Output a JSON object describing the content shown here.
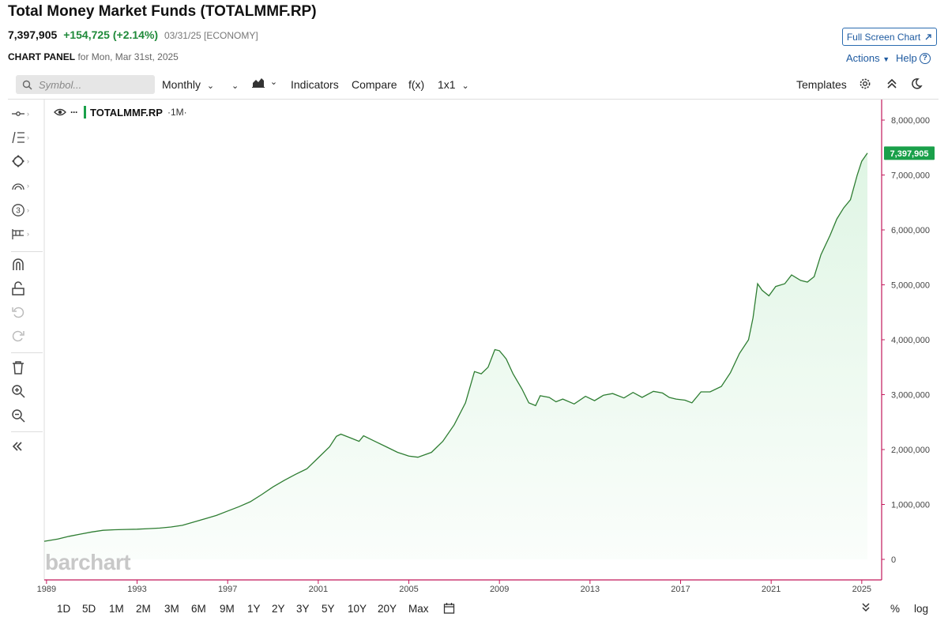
{
  "header": {
    "title": "Total Money Market Funds (TOTALMMF.RP)",
    "last": "7,397,905",
    "change": "+154,725 (+2.14%)",
    "meta": "03/31/25 [ECONOMY]",
    "panel_label": "CHART PANEL",
    "panel_date": "for Mon, Mar 31st, 2025",
    "full_screen": "Full Screen Chart",
    "actions": "Actions",
    "help": "Help"
  },
  "toolbar": {
    "search_placeholder": "Symbol...",
    "interval": "Monthly",
    "indicators": "Indicators",
    "compare": "Compare",
    "fx": "f(x)",
    "layout": "1x1",
    "templates": "Templates"
  },
  "legend": {
    "symbol": "TOTALMMF.RP",
    "interval": "·1M·"
  },
  "watermark": "barchart",
  "last_label": "7,397,905",
  "bottom": {
    "ranges": [
      "1D",
      "5D",
      "1M",
      "2M",
      "3M",
      "6M",
      "9M",
      "1Y",
      "2Y",
      "3Y",
      "5Y",
      "10Y",
      "20Y",
      "Max"
    ],
    "percent": "%",
    "log": "log"
  },
  "colors": {
    "line": "#2e7d32",
    "fill": "#dff5e4",
    "accent": "#1aa04a",
    "axis": "#c2185b",
    "link": "#1e5aa0"
  },
  "icons": [
    "search-icon",
    "area-chart-icon",
    "gear-icon",
    "collapse-up-icon",
    "moon-icon",
    "crosshair-icon",
    "fib-tool-icon",
    "shape-tool-icon",
    "arc-tool-icon",
    "counter-tool-icon",
    "pattern-tool-icon",
    "magnet-icon",
    "unlock-icon",
    "undo-icon",
    "redo-icon",
    "trash-icon",
    "zoom-in-icon",
    "zoom-out-icon",
    "collapse-left-icon",
    "eye-icon",
    "calendar-icon",
    "expand-down-icon",
    "external-link-icon",
    "help-icon"
  ],
  "chart_data": {
    "type": "area",
    "title": "Total Money Market Funds (TOTALMMF.RP)",
    "series": [
      {
        "name": "TOTALMMF.RP"
      }
    ],
    "xlim": [
      1988.9,
      2025.25
    ],
    "ylim": [
      0,
      8000000
    ],
    "x_ticks": [
      "1989",
      "1993",
      "1997",
      "2001",
      "2005",
      "2009",
      "2013",
      "2017",
      "2021",
      "2025"
    ],
    "x_tick_values": [
      1989,
      1993,
      1997,
      2001,
      2005,
      2009,
      2013,
      2017,
      2021,
      2025
    ],
    "y_ticks": [
      "0",
      "1,000,000",
      "2,000,000",
      "3,000,000",
      "4,000,000",
      "5,000,000",
      "6,000,000",
      "7,000,000",
      "8,000,000"
    ],
    "y_tick_values": [
      0,
      1000000,
      2000000,
      3000000,
      4000000,
      5000000,
      6000000,
      7000000,
      8000000
    ],
    "points": [
      [
        1988.9,
        330000
      ],
      [
        1989.5,
        370000
      ],
      [
        1990.0,
        420000
      ],
      [
        1990.5,
        460000
      ],
      [
        1991.0,
        500000
      ],
      [
        1991.5,
        530000
      ],
      [
        1992.0,
        540000
      ],
      [
        1992.5,
        545000
      ],
      [
        1993.0,
        550000
      ],
      [
        1993.5,
        560000
      ],
      [
        1994.0,
        570000
      ],
      [
        1994.5,
        590000
      ],
      [
        1995.0,
        620000
      ],
      [
        1995.5,
        680000
      ],
      [
        1996.0,
        740000
      ],
      [
        1996.5,
        800000
      ],
      [
        1997.0,
        880000
      ],
      [
        1997.5,
        960000
      ],
      [
        1998.0,
        1050000
      ],
      [
        1998.5,
        1180000
      ],
      [
        1999.0,
        1320000
      ],
      [
        1999.5,
        1440000
      ],
      [
        2000.0,
        1550000
      ],
      [
        2000.5,
        1650000
      ],
      [
        2001.0,
        1850000
      ],
      [
        2001.5,
        2050000
      ],
      [
        2001.8,
        2240000
      ],
      [
        2002.0,
        2280000
      ],
      [
        2002.5,
        2200000
      ],
      [
        2002.8,
        2150000
      ],
      [
        2003.0,
        2250000
      ],
      [
        2003.5,
        2150000
      ],
      [
        2004.0,
        2050000
      ],
      [
        2004.5,
        1950000
      ],
      [
        2005.0,
        1880000
      ],
      [
        2005.4,
        1860000
      ],
      [
        2006.0,
        1950000
      ],
      [
        2006.5,
        2150000
      ],
      [
        2007.0,
        2450000
      ],
      [
        2007.5,
        2850000
      ],
      [
        2007.9,
        3420000
      ],
      [
        2008.2,
        3380000
      ],
      [
        2008.5,
        3500000
      ],
      [
        2008.8,
        3820000
      ],
      [
        2009.0,
        3800000
      ],
      [
        2009.3,
        3650000
      ],
      [
        2009.6,
        3380000
      ],
      [
        2010.0,
        3100000
      ],
      [
        2010.3,
        2850000
      ],
      [
        2010.6,
        2800000
      ],
      [
        2010.8,
        2980000
      ],
      [
        2011.2,
        2950000
      ],
      [
        2011.5,
        2870000
      ],
      [
        2011.8,
        2920000
      ],
      [
        2012.3,
        2830000
      ],
      [
        2012.8,
        2970000
      ],
      [
        2013.2,
        2890000
      ],
      [
        2013.6,
        2990000
      ],
      [
        2014.0,
        3020000
      ],
      [
        2014.5,
        2940000
      ],
      [
        2014.9,
        3040000
      ],
      [
        2015.3,
        2950000
      ],
      [
        2015.8,
        3060000
      ],
      [
        2016.2,
        3030000
      ],
      [
        2016.5,
        2950000
      ],
      [
        2016.8,
        2920000
      ],
      [
        2017.2,
        2900000
      ],
      [
        2017.5,
        2850000
      ],
      [
        2017.9,
        3050000
      ],
      [
        2018.3,
        3050000
      ],
      [
        2018.8,
        3150000
      ],
      [
        2019.2,
        3400000
      ],
      [
        2019.6,
        3750000
      ],
      [
        2020.0,
        4000000
      ],
      [
        2020.2,
        4400000
      ],
      [
        2020.4,
        5020000
      ],
      [
        2020.6,
        4900000
      ],
      [
        2020.9,
        4800000
      ],
      [
        2021.2,
        4970000
      ],
      [
        2021.6,
        5020000
      ],
      [
        2021.9,
        5180000
      ],
      [
        2022.3,
        5080000
      ],
      [
        2022.6,
        5050000
      ],
      [
        2022.9,
        5150000
      ],
      [
        2023.2,
        5550000
      ],
      [
        2023.6,
        5900000
      ],
      [
        2023.9,
        6200000
      ],
      [
        2024.2,
        6400000
      ],
      [
        2024.5,
        6550000
      ],
      [
        2024.8,
        7000000
      ],
      [
        2025.0,
        7250000
      ],
      [
        2025.25,
        7397905
      ]
    ]
  }
}
